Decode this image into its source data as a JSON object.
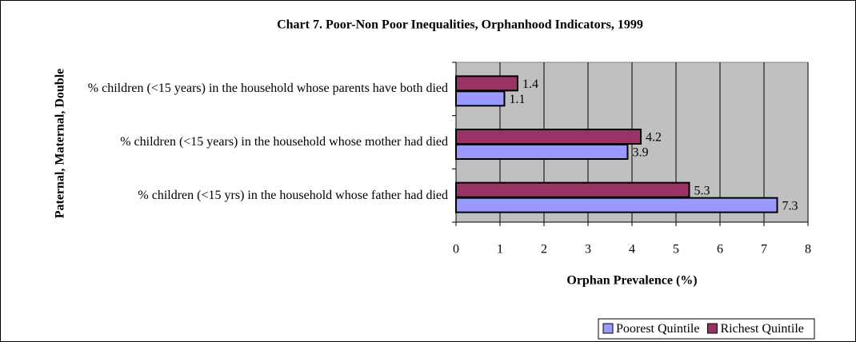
{
  "chart_data": {
    "type": "hbar",
    "title": "Chart 7. Poor-Non Poor Inequalities, Orphanhood Indicators, 1999",
    "x_label": "Orphan Prevalence (%)",
    "y_label": "Paternal, Maternal, Double",
    "categories": [
      "% children (<15 years) in the household whose parents have both died",
      "% children (<15 years) in the household whose mother had died",
      "% children (<15 yrs) in the household whose father had died"
    ],
    "series": [
      {
        "name": "Poorest Quintile",
        "color": "#9999ff",
        "values": [
          1.1,
          3.9,
          7.3
        ]
      },
      {
        "name": "Richest Quintile",
        "color": "#993366",
        "values": [
          1.4,
          4.2,
          5.3
        ]
      }
    ],
    "xlim": [
      0,
      8
    ],
    "xticks": [
      0,
      1,
      2,
      3,
      4,
      5,
      6,
      7,
      8
    ],
    "grid": true
  }
}
